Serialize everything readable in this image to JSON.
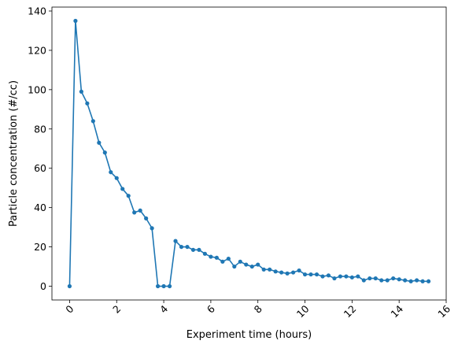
{
  "chart_data": {
    "type": "line",
    "xlabel": "Experiment time (hours)",
    "ylabel": "Particle concentration (#/cc)",
    "xlim": [
      -0.75,
      16
    ],
    "ylim": [
      -7,
      142
    ],
    "xticks": [
      0,
      2,
      4,
      6,
      8,
      10,
      12,
      14,
      16
    ],
    "yticks": [
      0,
      20,
      40,
      60,
      80,
      100,
      120,
      140
    ],
    "xtick_rotation": 45,
    "grid": false,
    "color": "#1f77b4",
    "series": [
      {
        "marker": "circle",
        "x": [
          0.0,
          0.25,
          0.5,
          0.75,
          1.0,
          1.25,
          1.5,
          1.75,
          2.0,
          2.25,
          2.5,
          2.75,
          3.0,
          3.25,
          3.5,
          3.75,
          4.0,
          4.25,
          4.5,
          4.75,
          5.0,
          5.25,
          5.5,
          5.75,
          6.0,
          6.25,
          6.5,
          6.75,
          7.0,
          7.25,
          7.5,
          7.75,
          8.0,
          8.25,
          8.5,
          8.75,
          9.0,
          9.25,
          9.5,
          9.75,
          10.0,
          10.25,
          10.5,
          10.75,
          11.0,
          11.25,
          11.5,
          11.75,
          12.0,
          12.25,
          12.5,
          12.75,
          13.0,
          13.25,
          13.5,
          13.75,
          14.0,
          14.25,
          14.5,
          14.75,
          15.0,
          15.25
        ],
        "y": [
          0,
          135,
          99,
          93,
          84,
          73,
          68,
          58,
          55,
          49.5,
          46,
          37.5,
          38.5,
          34.5,
          29.5,
          0,
          0,
          0,
          23,
          20,
          20,
          18.5,
          18.5,
          16.5,
          15,
          14.5,
          12.5,
          14,
          10,
          12.5,
          11,
          10,
          11,
          8.5,
          8.5,
          7.5,
          7,
          6.5,
          7,
          8,
          6,
          6,
          6,
          5,
          5.5,
          4,
          5,
          5,
          4.5,
          5,
          3,
          4,
          4,
          3,
          3,
          4,
          3.5,
          3,
          2.5,
          3,
          2.5,
          2.5
        ]
      }
    ]
  }
}
